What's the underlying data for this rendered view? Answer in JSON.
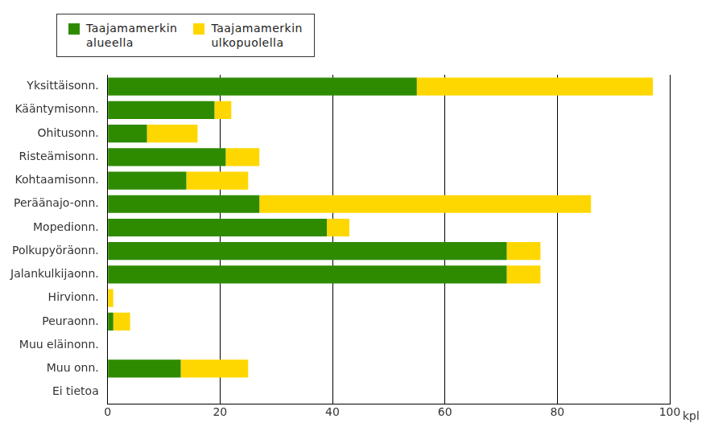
{
  "chart_data": {
    "type": "bar",
    "orientation": "horizontal",
    "stacked": true,
    "categories": [
      "Yksittäisonn.",
      "Kääntymisonn.",
      "Ohitusonn.",
      "Risteämisonn.",
      "Kohtaamisonn.",
      "Peräänajo-onn.",
      "Mopedionn.",
      "Polkupyöräonn.",
      "Jalankulkijaonn.",
      "Hirvionn.",
      "Peuraonn.",
      "Muu eläinonn.",
      "Muu onn.",
      "Ei tietoa"
    ],
    "series": [
      {
        "name": "Taajamamerkin alueella",
        "color": "#2e8b00",
        "values": [
          55,
          19,
          7,
          21,
          14,
          27,
          39,
          71,
          71,
          0,
          1,
          0,
          13,
          0
        ]
      },
      {
        "name": "Taajamamerkin ulkopuolella",
        "color": "#ffd700",
        "values": [
          42,
          3,
          9,
          6,
          11,
          59,
          4,
          6,
          6,
          1,
          3,
          0,
          12,
          0
        ]
      }
    ],
    "xlabel": "kpl",
    "xlim": [
      0,
      100
    ],
    "xticks": [
      0,
      20,
      40,
      60,
      80,
      100
    ],
    "grid": true,
    "legend": "upper left"
  }
}
